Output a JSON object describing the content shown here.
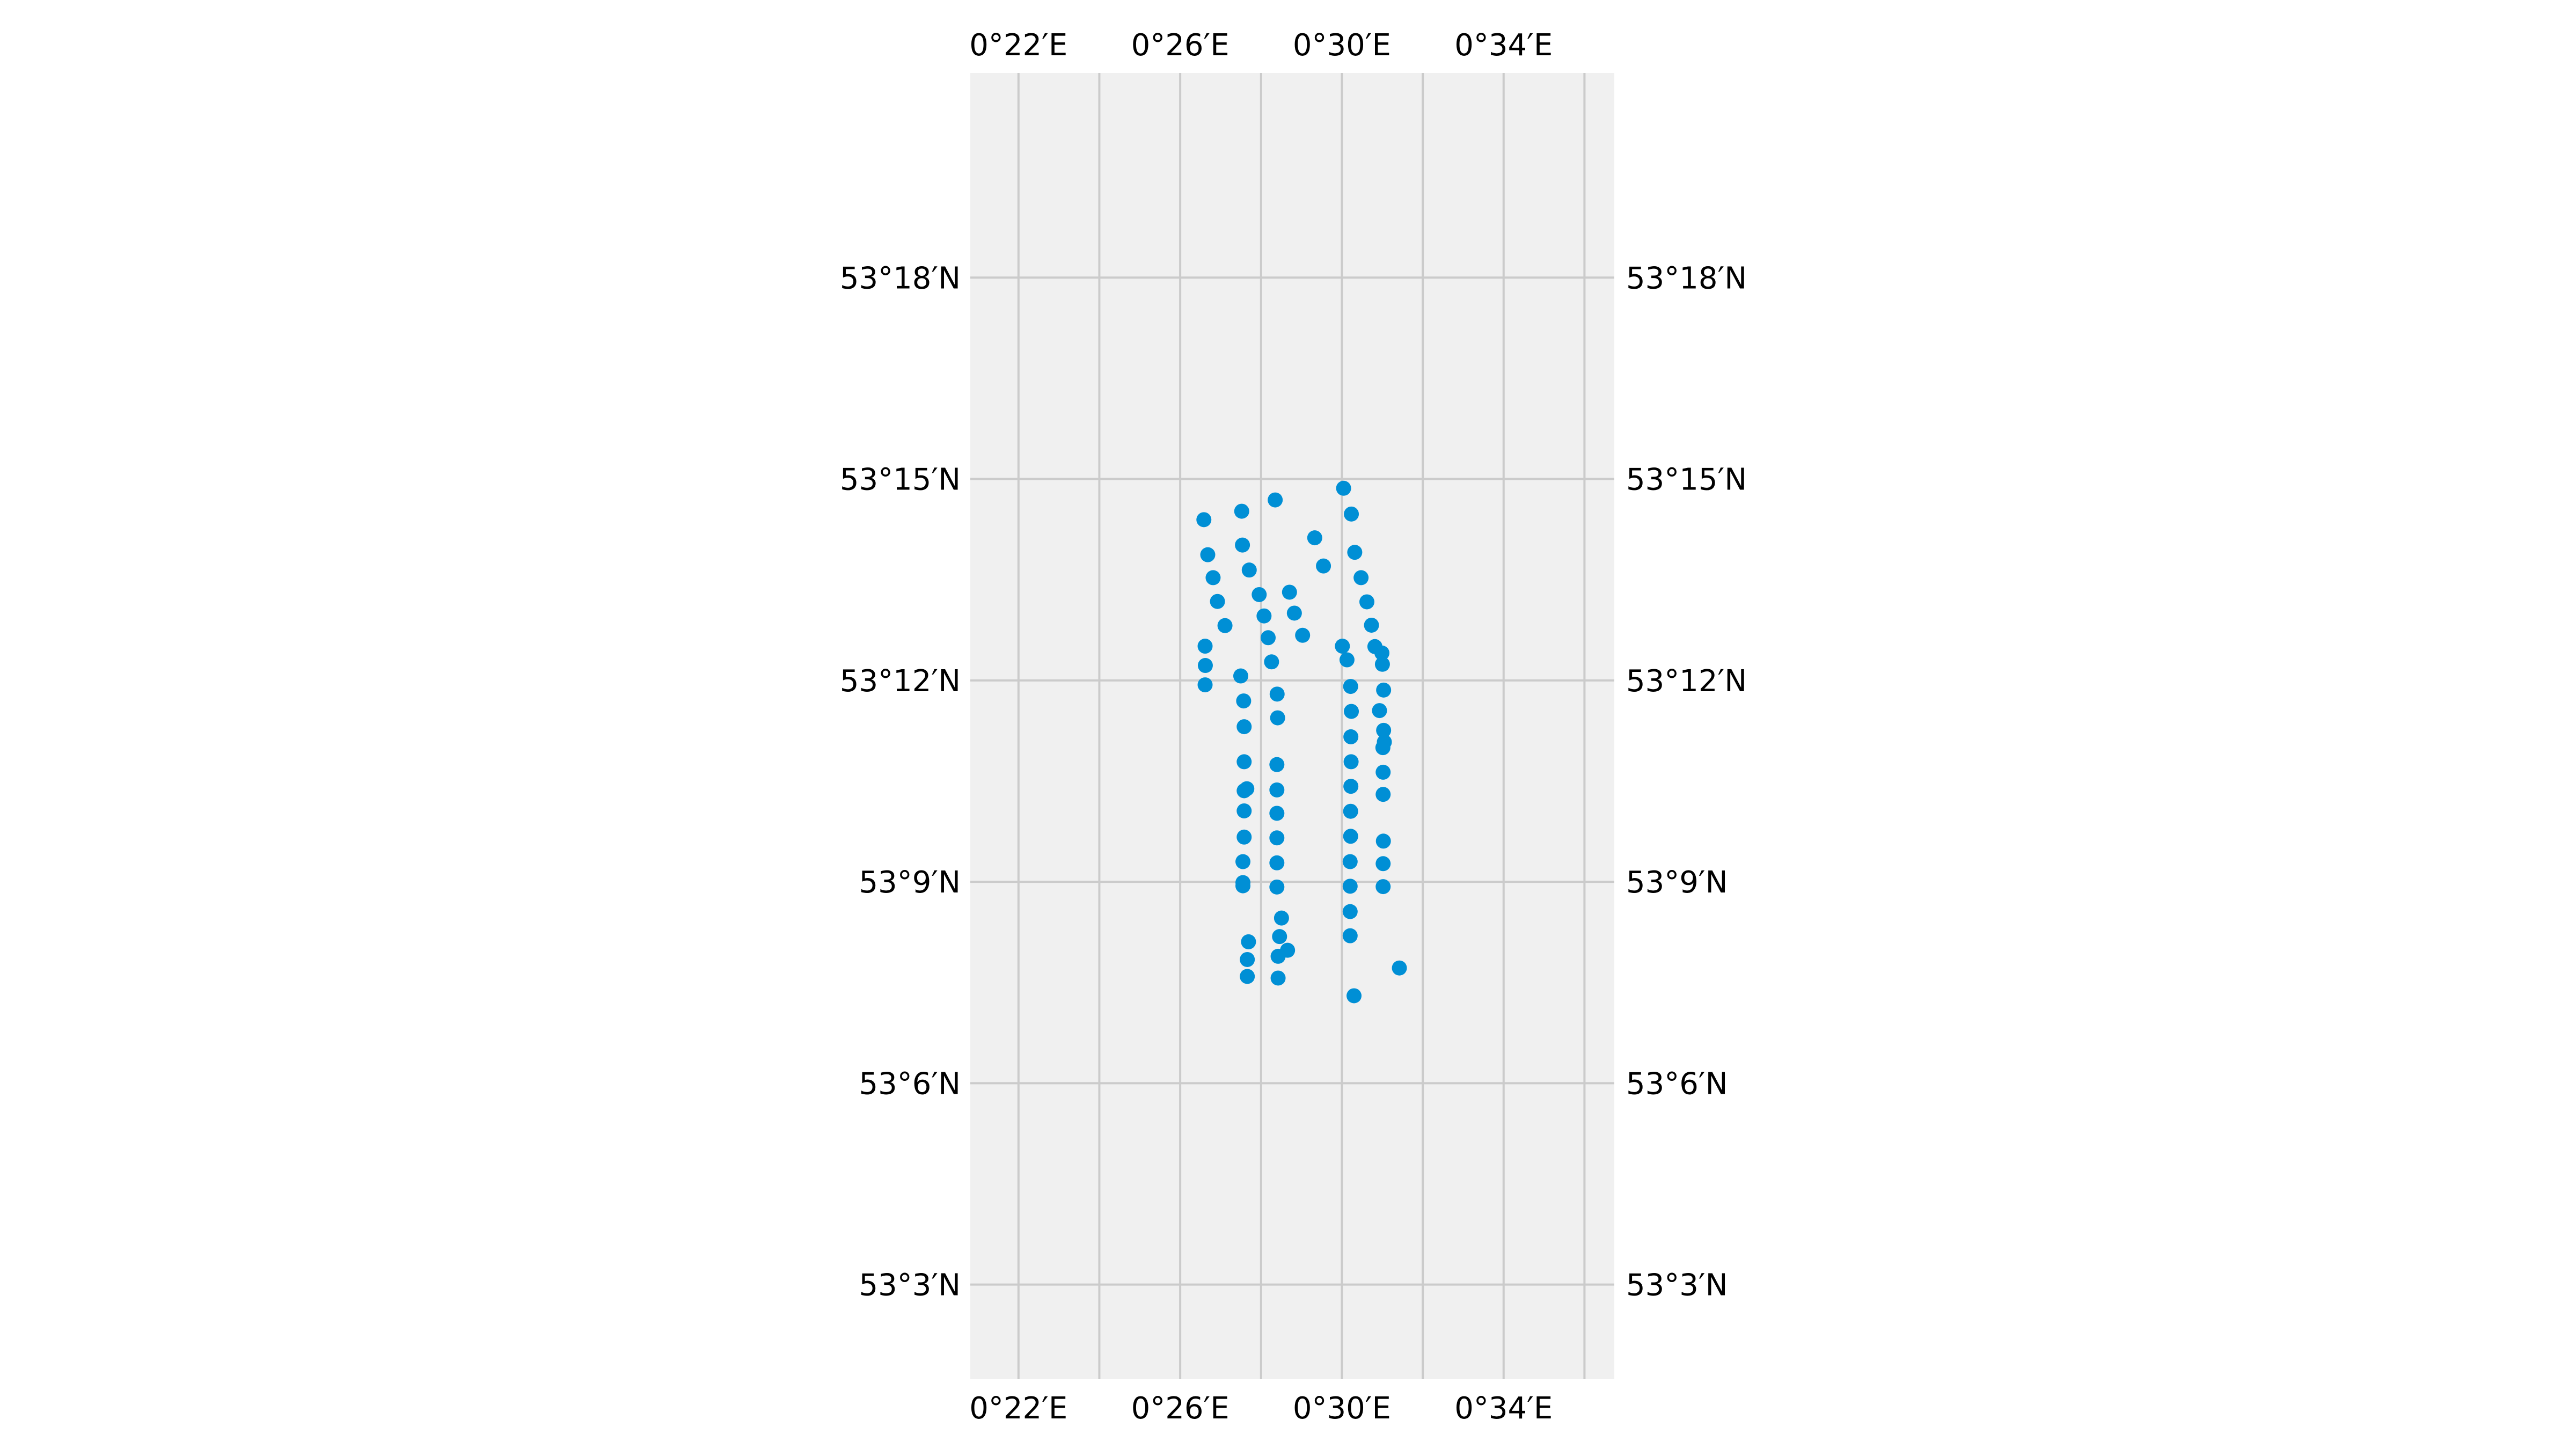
{
  "chart_data": {
    "type": "scatter",
    "projection": "map",
    "title": "",
    "xlabel": "",
    "ylabel": "",
    "xlim": [
      0.3468,
      0.6123
    ],
    "ylim": [
      53.0265,
      53.3508
    ],
    "x_ticks": [
      {
        "value": 0.366667,
        "label": "0°22′E"
      },
      {
        "value": 0.433333,
        "label": "0°26′E"
      },
      {
        "value": 0.5,
        "label": "0°30′E"
      },
      {
        "value": 0.566667,
        "label": "0°34′E"
      }
    ],
    "x_grid_values": [
      0.366667,
      0.4,
      0.433333,
      0.466667,
      0.5,
      0.533333,
      0.566667,
      0.6
    ],
    "y_ticks": [
      {
        "value": 53.05,
        "label": "53°3′N"
      },
      {
        "value": 53.1,
        "label": "53°6′N"
      },
      {
        "value": 53.15,
        "label": "53°9′N"
      },
      {
        "value": 53.2,
        "label": "53°12′N"
      },
      {
        "value": 53.25,
        "label": "53°15′N"
      },
      {
        "value": 53.3,
        "label": "53°18′N"
      }
    ],
    "grid": true,
    "colors": {
      "background": "#f0f0f0",
      "grid": "#cbcbcb",
      "points": "#008fd5"
    },
    "series": [
      {
        "points": [
          [
            0.5007,
            53.2477
          ],
          [
            0.4725,
            53.2448
          ],
          [
            0.4587,
            53.242
          ],
          [
            0.4431,
            53.2399
          ],
          [
            0.5039,
            53.2413
          ],
          [
            0.4888,
            53.2354
          ],
          [
            0.459,
            53.2336
          ],
          [
            0.4447,
            53.2312
          ],
          [
            0.5053,
            53.2318
          ],
          [
            0.4924,
            53.2284
          ],
          [
            0.4618,
            53.2274
          ],
          [
            0.4469,
            53.2255
          ],
          [
            0.5079,
            53.2255
          ],
          [
            0.4784,
            53.2219
          ],
          [
            0.4659,
            53.2213
          ],
          [
            0.4487,
            53.2196
          ],
          [
            0.5103,
            53.2195
          ],
          [
            0.4804,
            53.2167
          ],
          [
            0.4679,
            53.216
          ],
          [
            0.4518,
            53.2136
          ],
          [
            0.5122,
            53.2137
          ],
          [
            0.4838,
            53.2112
          ],
          [
            0.4696,
            53.2106
          ],
          [
            0.4436,
            53.2085
          ],
          [
            0.5002,
            53.2085
          ],
          [
            0.5136,
            53.2084
          ],
          [
            0.5165,
            53.2068
          ],
          [
            0.5167,
            53.204
          ],
          [
            0.4437,
            53.2037
          ],
          [
            0.471,
            53.2046
          ],
          [
            0.5021,
            53.2051
          ],
          [
            0.4583,
            53.2011
          ],
          [
            0.4436,
            53.1989
          ],
          [
            0.5036,
            53.1985
          ],
          [
            0.4733,
            53.1966
          ],
          [
            0.5172,
            53.1976
          ],
          [
            0.4595,
            53.1949
          ],
          [
            0.5155,
            53.1925
          ],
          [
            0.5039,
            53.1923
          ],
          [
            0.4735,
            53.1907
          ],
          [
            0.4597,
            53.1885
          ],
          [
            0.5172,
            53.1876
          ],
          [
            0.5037,
            53.186
          ],
          [
            0.5175,
            53.1847
          ],
          [
            0.5169,
            53.1833
          ],
          [
            0.4597,
            53.1798
          ],
          [
            0.5038,
            53.1798
          ],
          [
            0.4732,
            53.1791
          ],
          [
            0.517,
            53.1772
          ],
          [
            0.5037,
            53.1737
          ],
          [
            0.4608,
            53.1731
          ],
          [
            0.4597,
            53.1726
          ],
          [
            0.4732,
            53.1728
          ],
          [
            0.517,
            53.1717
          ],
          [
            0.4597,
            53.1676
          ],
          [
            0.5036,
            53.1675
          ],
          [
            0.4732,
            53.167
          ],
          [
            0.4597,
            53.1611
          ],
          [
            0.5036,
            53.1613
          ],
          [
            0.4732,
            53.1609
          ],
          [
            0.5171,
            53.1601
          ],
          [
            0.4592,
            53.155
          ],
          [
            0.5034,
            53.155
          ],
          [
            0.4732,
            53.1547
          ],
          [
            0.517,
            53.1545
          ],
          [
            0.4592,
            53.1498
          ],
          [
            0.4592,
            53.149
          ],
          [
            0.5034,
            53.1489
          ],
          [
            0.4732,
            53.1487
          ],
          [
            0.517,
            53.1488
          ],
          [
            0.5034,
            53.1426
          ],
          [
            0.4751,
            53.141
          ],
          [
            0.5034,
            53.1366
          ],
          [
            0.4743,
            53.1364
          ],
          [
            0.4615,
            53.1351
          ],
          [
            0.4776,
            53.133
          ],
          [
            0.4737,
            53.1315
          ],
          [
            0.461,
            53.1307
          ],
          [
            0.5237,
            53.1286
          ],
          [
            0.461,
            53.1265
          ],
          [
            0.4737,
            53.1261
          ],
          [
            0.505,
            53.1217
          ]
        ]
      }
    ]
  }
}
